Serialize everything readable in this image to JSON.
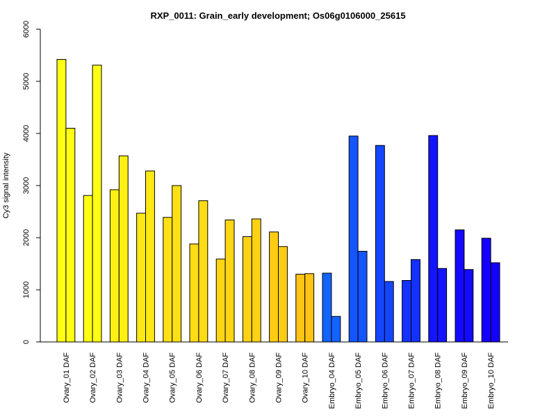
{
  "chart_data": {
    "type": "bar",
    "title": "RXP_0011: Grain_early development; Os06g0106000_25615",
    "xlabel": "",
    "ylabel": "Cy3 signal intensity",
    "ylim": [
      0,
      6000
    ],
    "yticks": [
      0,
      1000,
      2000,
      3000,
      4000,
      5000,
      6000
    ],
    "grid": false,
    "categories": [
      "Ovary_01 DAF",
      "Ovary_02 DAF",
      "Ovary_03 DAF",
      "Ovary_04 DAF",
      "Ovary_05 DAF",
      "Ovary_06 DAF",
      "Ovary_07 DAF",
      "Ovary_08 DAF",
      "Ovary_09 DAF",
      "Ovary_10 DAF",
      "Embryo_04 DAF",
      "Embryo_05 DAF",
      "Embryo_06 DAF",
      "Embryo_07 DAF",
      "Embryo_08 DAF",
      "Embryo_09 DAF",
      "Embryo_10 DAF"
    ],
    "colors": [
      "#FFFF14",
      "#FFFF14",
      "#FFF014",
      "#FFE814",
      "#FFE014",
      "#FFDC14",
      "#FFD614",
      "#FFD214",
      "#FFCC14",
      "#FFC414",
      "#1464FF",
      "#1455FF",
      "#1446FF",
      "#1432FF",
      "#1414FF",
      "#140AFF",
      "#1400FF"
    ],
    "series": [
      {
        "values": [
          5420,
          2810,
          2920,
          2470,
          2390,
          1880,
          1590,
          2020,
          2110,
          1300,
          1320,
          3950,
          3770,
          1180,
          3960,
          2150,
          1990
        ]
      },
      {
        "values": [
          4100,
          5310,
          3570,
          3280,
          3000,
          2710,
          2340,
          2360,
          1830,
          1310,
          490,
          1740,
          1160,
          1580,
          1410,
          1390,
          1520
        ]
      }
    ]
  }
}
